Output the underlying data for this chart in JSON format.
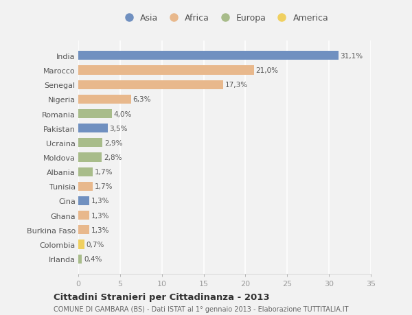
{
  "countries": [
    "India",
    "Marocco",
    "Senegal",
    "Nigeria",
    "Romania",
    "Pakistan",
    "Ucraina",
    "Moldova",
    "Albania",
    "Tunisia",
    "Cina",
    "Ghana",
    "Burkina Faso",
    "Colombia",
    "Irlanda"
  ],
  "values": [
    31.1,
    21.0,
    17.3,
    6.3,
    4.0,
    3.5,
    2.9,
    2.8,
    1.7,
    1.7,
    1.3,
    1.3,
    1.3,
    0.7,
    0.4
  ],
  "labels": [
    "31,1%",
    "21,0%",
    "17,3%",
    "6,3%",
    "4,0%",
    "3,5%",
    "2,9%",
    "2,8%",
    "1,7%",
    "1,7%",
    "1,3%",
    "1,3%",
    "1,3%",
    "0,7%",
    "0,4%"
  ],
  "continents": [
    "Asia",
    "Africa",
    "Africa",
    "Africa",
    "Europa",
    "Asia",
    "Europa",
    "Europa",
    "Europa",
    "Africa",
    "Asia",
    "Africa",
    "Africa",
    "America",
    "Europa"
  ],
  "continent_colors": {
    "Asia": "#7090c0",
    "Africa": "#e8b88c",
    "Europa": "#a8bc8a",
    "America": "#f0d060"
  },
  "legend_order": [
    "Asia",
    "Africa",
    "Europa",
    "America"
  ],
  "bg_color": "#f2f2f2",
  "title": "Cittadini Stranieri per Cittadinanza - 2013",
  "subtitle": "COMUNE DI GAMBARA (BS) - Dati ISTAT al 1° gennaio 2013 - Elaborazione TUTTITALIA.IT",
  "xlim": [
    0,
    35
  ],
  "xticks": [
    0,
    5,
    10,
    15,
    20,
    25,
    30,
    35
  ]
}
